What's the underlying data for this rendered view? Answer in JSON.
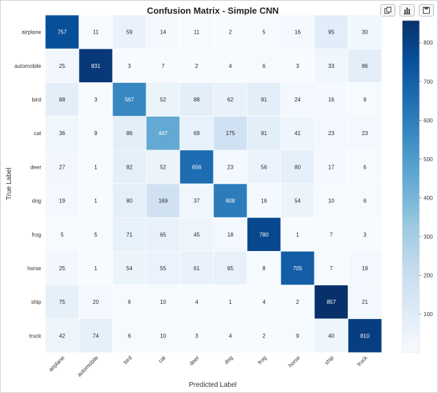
{
  "toolbar": {
    "buttons": [
      {
        "name": "copy-icon"
      },
      {
        "name": "bar-chart-icon"
      },
      {
        "name": "save-icon"
      }
    ]
  },
  "chart_data": {
    "type": "heatmap",
    "title": "Confusion Matrix - Simple CNN",
    "xlabel": "Predicted Label",
    "ylabel": "True Label",
    "x_categories": [
      "airplane",
      "automobile",
      "bird",
      "cat",
      "deer",
      "dog",
      "frog",
      "horse",
      "ship",
      "truck"
    ],
    "y_categories": [
      "airplane",
      "automobile",
      "bird",
      "cat",
      "deer",
      "dog",
      "frog",
      "horse",
      "ship",
      "truck"
    ],
    "values": [
      [
        757,
        11,
        59,
        14,
        11,
        2,
        5,
        16,
        95,
        30
      ],
      [
        25,
        831,
        3,
        7,
        2,
        4,
        6,
        3,
        33,
        86
      ],
      [
        88,
        3,
        567,
        52,
        88,
        62,
        91,
        24,
        16,
        9
      ],
      [
        36,
        9,
        86,
        447,
        69,
        175,
        91,
        41,
        23,
        23
      ],
      [
        27,
        1,
        82,
        52,
        656,
        23,
        56,
        80,
        17,
        6
      ],
      [
        19,
        1,
        80,
        169,
        37,
        608,
        16,
        54,
        10,
        6
      ],
      [
        5,
        5,
        71,
        65,
        45,
        18,
        780,
        1,
        7,
        3
      ],
      [
        25,
        1,
        54,
        55,
        61,
        65,
        8,
        705,
        7,
        19
      ],
      [
        75,
        20,
        6,
        10,
        4,
        1,
        4,
        2,
        857,
        21
      ],
      [
        42,
        74,
        6,
        10,
        3,
        4,
        2,
        9,
        40,
        810
      ]
    ],
    "colormap": "Blues",
    "colorbar": {
      "vmin": 1,
      "vmax": 857,
      "ticks": [
        100,
        200,
        300,
        400,
        500,
        600,
        700,
        800
      ],
      "tick_labels": [
        "100",
        "200",
        "300",
        "400",
        "500",
        "600",
        "700",
        "800"
      ]
    }
  }
}
